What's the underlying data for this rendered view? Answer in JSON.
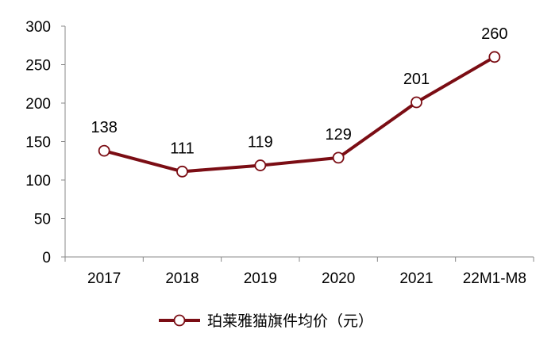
{
  "chart_data": {
    "type": "line",
    "categories": [
      "2017",
      "2018",
      "2019",
      "2020",
      "2021",
      "22M1-M8"
    ],
    "series": [
      {
        "name": "珀莱雅猫旗件均价（元）",
        "values": [
          138,
          111,
          119,
          129,
          201,
          260
        ]
      }
    ],
    "data_labels": [
      "138",
      "111",
      "119",
      "129",
      "201",
      "260"
    ],
    "y_ticks": [
      "0",
      "50",
      "100",
      "150",
      "200",
      "250",
      "300"
    ],
    "ylim": [
      0,
      300
    ],
    "grid": false,
    "legend_position": "bottom",
    "line_color": "#7b0d14",
    "marker_fill": "#ffffff"
  }
}
